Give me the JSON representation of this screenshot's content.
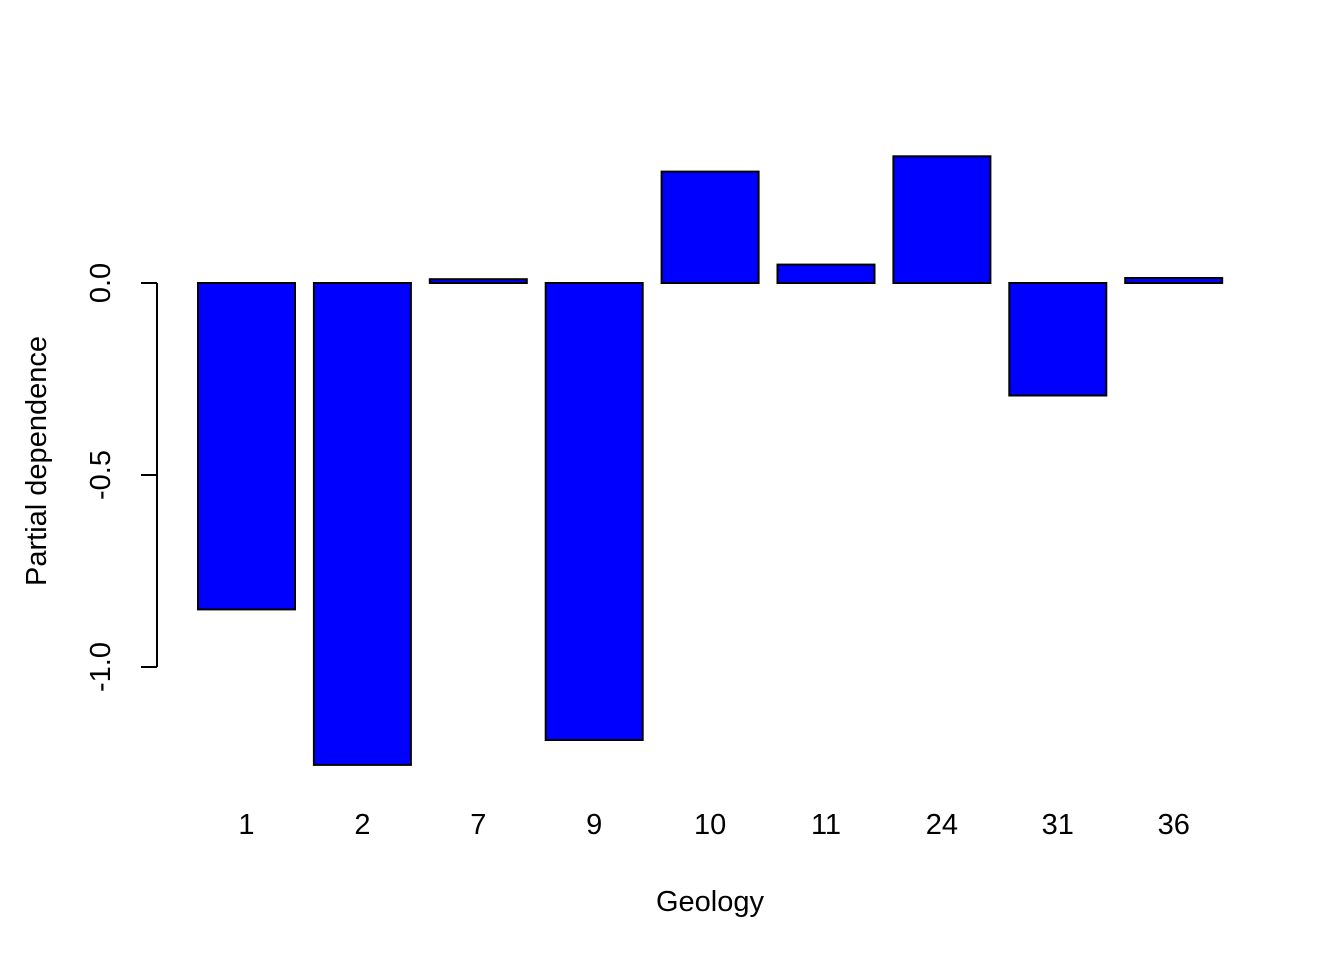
{
  "chart_data": {
    "type": "bar",
    "title": "",
    "xlabel": "Geology",
    "ylabel": "Partial dependence",
    "categories": [
      "1",
      "2",
      "7",
      "9",
      "10",
      "11",
      "24",
      "31",
      "36"
    ],
    "values": [
      -0.85,
      -1.255,
      0.01,
      -1.19,
      0.29,
      0.048,
      0.33,
      -0.293,
      0.013
    ],
    "ylim": [
      -1.3,
      0.4
    ],
    "yticks": [
      0.0,
      -0.5,
      -1.0
    ],
    "ytick_labels": [
      "0.0",
      "-0.5",
      "-1.0"
    ],
    "bar_color": "#0000FF",
    "bar_edge_color": "#000000",
    "grid": false,
    "legend": "none"
  }
}
